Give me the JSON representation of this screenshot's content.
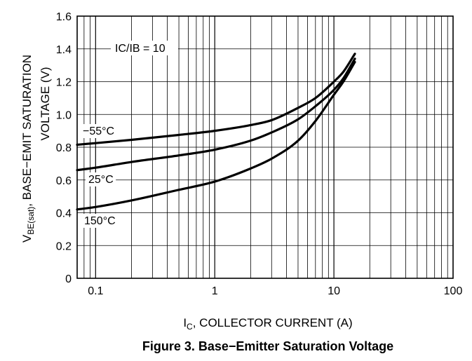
{
  "chart_data": {
    "type": "line",
    "title": "Figure 3. Base−Emitter Saturation Voltage",
    "xlabel": {
      "main": "I",
      "sub": "C",
      "rest": ", COLLECTOR CURRENT (A)"
    },
    "ylabel": {
      "line1": {
        "main": "V",
        "sub": "BE(sat)",
        "rest": ", BASE−EMIT SATURATION"
      },
      "line2": "VOLTAGE (V)"
    },
    "xscale": "log",
    "xlim": [
      0.07,
      100
    ],
    "ylim": [
      0,
      1.6
    ],
    "grid": true,
    "xticks": [
      {
        "value": 0.1,
        "label": "0.1"
      },
      {
        "value": 1,
        "label": "1"
      },
      {
        "value": 10,
        "label": "10"
      },
      {
        "value": 100,
        "label": "100"
      }
    ],
    "yticks": [
      {
        "value": 0,
        "label": "0"
      },
      {
        "value": 0.2,
        "label": "0.2"
      },
      {
        "value": 0.4,
        "label": "0.4"
      },
      {
        "value": 0.6,
        "label": "0.6"
      },
      {
        "value": 0.8,
        "label": "0.8"
      },
      {
        "value": 1.0,
        "label": "1.0"
      },
      {
        "value": 1.2,
        "label": "1.2"
      },
      {
        "value": 1.4,
        "label": "1.4"
      },
      {
        "value": 1.6,
        "label": "1.6"
      }
    ],
    "annotations": [
      {
        "text": "IC/IB = 10",
        "anchor": "top-left"
      }
    ],
    "series": [
      {
        "name": "−55°C",
        "x": [
          0.07,
          0.1,
          0.2,
          0.5,
          1,
          2,
          3,
          5,
          7,
          10,
          12,
          15
        ],
        "y": [
          0.815,
          0.825,
          0.845,
          0.875,
          0.9,
          0.935,
          0.965,
          1.04,
          1.1,
          1.2,
          1.26,
          1.37
        ]
      },
      {
        "name": "25°C",
        "x": [
          0.07,
          0.1,
          0.2,
          0.5,
          1,
          2,
          3,
          5,
          7,
          10,
          12,
          15
        ],
        "y": [
          0.66,
          0.675,
          0.71,
          0.75,
          0.785,
          0.84,
          0.89,
          0.97,
          1.05,
          1.15,
          1.22,
          1.34
        ]
      },
      {
        "name": "150°C",
        "x": [
          0.07,
          0.1,
          0.2,
          0.5,
          1,
          2,
          3,
          5,
          7,
          10,
          12,
          15
        ],
        "y": [
          0.42,
          0.435,
          0.475,
          0.54,
          0.59,
          0.67,
          0.73,
          0.84,
          0.96,
          1.12,
          1.2,
          1.32
        ]
      }
    ]
  }
}
